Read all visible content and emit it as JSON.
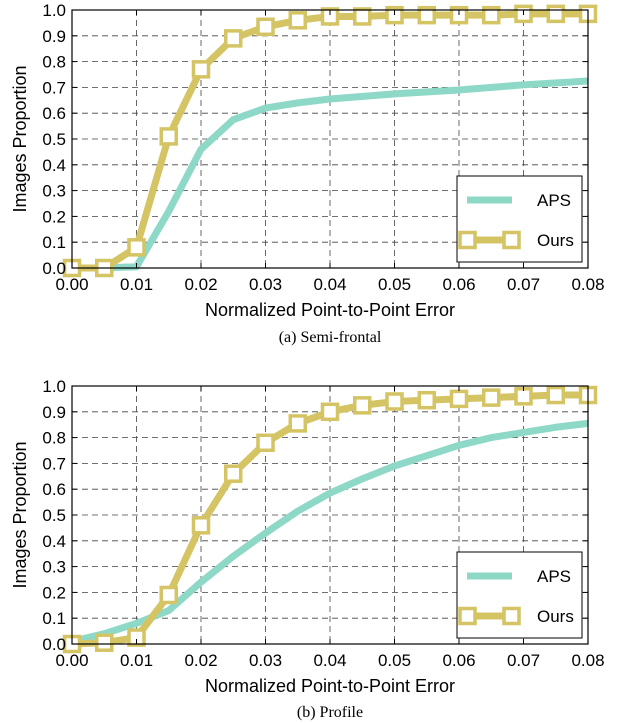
{
  "colors": {
    "APS": "#8ed8c8",
    "Ours": "#d4c463"
  },
  "chart_data": [
    {
      "type": "line",
      "caption": "(a) Semi-frontal",
      "xlabel": "Normalized Point-to-Point Error",
      "ylabel": "Images Proportion",
      "xlim": [
        0,
        0.08
      ],
      "ylim": [
        0,
        1.0
      ],
      "xticks": [
        "0.00",
        "0.01",
        "0.02",
        "0.03",
        "0.04",
        "0.05",
        "0.06",
        "0.07",
        "0.08"
      ],
      "yticks": [
        "0.0",
        "0.1",
        "0.2",
        "0.3",
        "0.4",
        "0.5",
        "0.6",
        "0.7",
        "0.8",
        "0.9",
        "1.0"
      ],
      "grid": true,
      "legend_position": "lower-right",
      "series": [
        {
          "name": "APS",
          "marker": "none",
          "x": [
            0,
            0.005,
            0.01,
            0.015,
            0.02,
            0.025,
            0.03,
            0.035,
            0.04,
            0.05,
            0.06,
            0.07,
            0.08
          ],
          "y": [
            0,
            0,
            0.005,
            0.22,
            0.46,
            0.575,
            0.62,
            0.64,
            0.655,
            0.675,
            0.69,
            0.71,
            0.725
          ]
        },
        {
          "name": "Ours",
          "marker": "square",
          "x": [
            0,
            0.005,
            0.01,
            0.015,
            0.02,
            0.025,
            0.03,
            0.035,
            0.04,
            0.045,
            0.05,
            0.055,
            0.06,
            0.065,
            0.07,
            0.075,
            0.08
          ],
          "y": [
            0,
            0,
            0.08,
            0.51,
            0.77,
            0.89,
            0.935,
            0.96,
            0.975,
            0.975,
            0.98,
            0.98,
            0.98,
            0.98,
            0.985,
            0.985,
            0.985
          ]
        }
      ]
    },
    {
      "type": "line",
      "caption": "(b) Profile",
      "xlabel": "Normalized Point-to-Point Error",
      "ylabel": "Images Proportion",
      "xlim": [
        0,
        0.08
      ],
      "ylim": [
        0,
        1.0
      ],
      "xticks": [
        "0.00",
        "0.01",
        "0.02",
        "0.03",
        "0.04",
        "0.05",
        "0.06",
        "0.07",
        "0.08"
      ],
      "yticks": [
        "0.0",
        "0.1",
        "0.2",
        "0.3",
        "0.4",
        "0.5",
        "0.6",
        "0.7",
        "0.8",
        "0.9",
        "1.0"
      ],
      "grid": true,
      "legend_position": "lower-right",
      "series": [
        {
          "name": "APS",
          "marker": "none",
          "x": [
            0,
            0.005,
            0.01,
            0.015,
            0.02,
            0.025,
            0.03,
            0.035,
            0.04,
            0.045,
            0.05,
            0.055,
            0.06,
            0.065,
            0.07,
            0.075,
            0.08
          ],
          "y": [
            0.01,
            0.04,
            0.08,
            0.13,
            0.24,
            0.34,
            0.43,
            0.515,
            0.585,
            0.64,
            0.69,
            0.73,
            0.77,
            0.8,
            0.82,
            0.84,
            0.855
          ]
        },
        {
          "name": "Ours",
          "marker": "square",
          "x": [
            0,
            0.005,
            0.01,
            0.015,
            0.02,
            0.025,
            0.03,
            0.035,
            0.04,
            0.045,
            0.05,
            0.055,
            0.06,
            0.065,
            0.07,
            0.075,
            0.08
          ],
          "y": [
            0,
            0.005,
            0.025,
            0.19,
            0.46,
            0.66,
            0.78,
            0.855,
            0.9,
            0.925,
            0.94,
            0.945,
            0.95,
            0.955,
            0.96,
            0.965,
            0.965
          ]
        }
      ]
    }
  ]
}
